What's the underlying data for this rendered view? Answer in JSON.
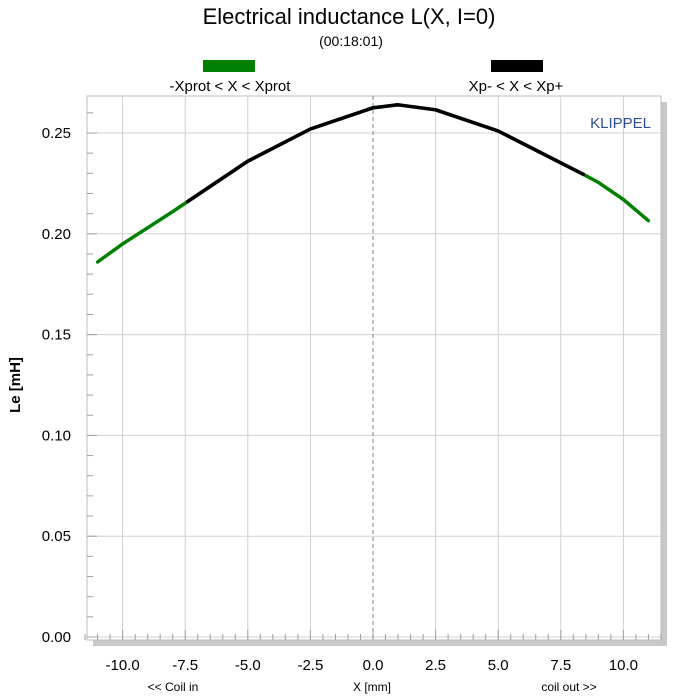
{
  "chart_data": {
    "type": "line",
    "title": "Electrical inductance L(X, I=0)",
    "subtitle": "(00:18:01)",
    "xlabel": "X [mm]",
    "ylabel": "Le [mH]",
    "x_left_label": "<< Coil in",
    "x_right_label": "coil out >>",
    "brand": "KLIPPEL",
    "xlim": [
      -11.5,
      11.5
    ],
    "ylim": [
      0.0,
      0.265
    ],
    "xticks": [
      -10.0,
      -7.5,
      -5.0,
      -2.5,
      0.0,
      2.5,
      5.0,
      7.5,
      10.0
    ],
    "xtick_labels": [
      "-10.0",
      "-7.5",
      "-5.0",
      "-2.5",
      "0.0",
      "2.5",
      "5.0",
      "7.5",
      "10.0"
    ],
    "yticks": [
      0.0,
      0.05,
      0.1,
      0.15,
      0.2,
      0.25
    ],
    "ytick_labels": [
      "0.00",
      "0.05",
      "0.10",
      "0.15",
      "0.20",
      "0.25"
    ],
    "grid": true,
    "legend_placement": "top",
    "legend": [
      {
        "label": "-Xprot < X < Xprot",
        "color": "#008000"
      },
      {
        "label": "Xp- < X < Xp+",
        "color": "#000000"
      }
    ],
    "series": [
      {
        "name": "-Xprot < X < Xprot",
        "color": "#008000",
        "x": [
          -11.0,
          -10.0,
          -9.0,
          -8.0,
          -7.4,
          -5.0,
          -2.5,
          0.0,
          1.0,
          2.5,
          5.0,
          8.4,
          9.0,
          10.0,
          11.0
        ],
        "y": [
          0.186,
          0.195,
          0.203,
          0.211,
          0.216,
          0.236,
          0.252,
          0.2625,
          0.264,
          0.2615,
          0.251,
          0.2295,
          0.2255,
          0.217,
          0.2065
        ]
      },
      {
        "name": "Xp- < X < Xp+",
        "color": "#000000",
        "x": [
          -7.4,
          -5.0,
          -2.5,
          0.0,
          1.0,
          2.5,
          5.0,
          8.4
        ],
        "y": [
          0.216,
          0.236,
          0.252,
          0.2625,
          0.264,
          0.2615,
          0.251,
          0.2295
        ]
      }
    ]
  }
}
